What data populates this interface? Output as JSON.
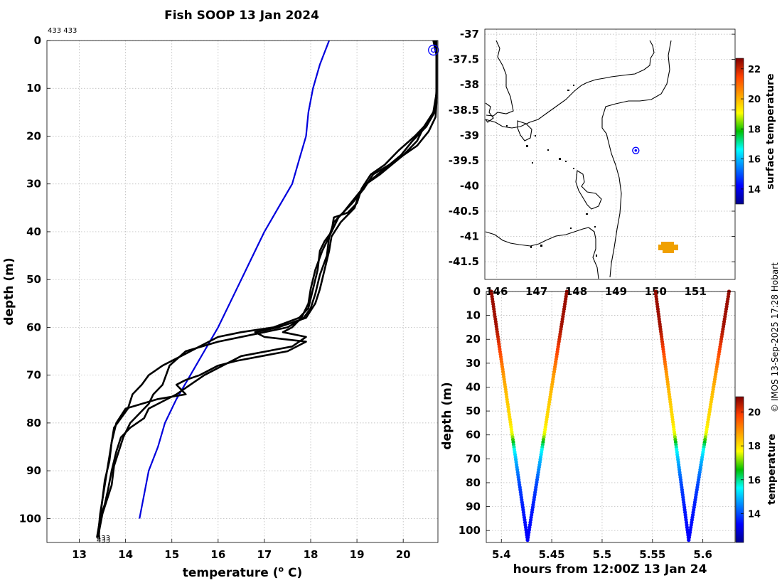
{
  "figure": {
    "credit": "© IMOS 13-Sep-2025 17:28 Hobart"
  },
  "chart_data": [
    {
      "type": "line",
      "title": "Fish SOOP 13 Jan 2024",
      "xlabel": "temperature (",
      "xlabel_sup": "o",
      "xlabel_end": " C)",
      "ylabel": "depth (m)",
      "xlim": [
        12.3,
        20.75
      ],
      "ylim": [
        105,
        0
      ],
      "xticks": [
        13,
        14,
        15,
        16,
        17,
        18,
        19,
        20
      ],
      "yticks": [
        0,
        10,
        20,
        30,
        40,
        50,
        60,
        70,
        80,
        90,
        100
      ],
      "top_annotation": "433 433",
      "bottom_annotation_1": "433",
      "bottom_annotation_2": "433",
      "marker": {
        "x": 20.7,
        "y": 2
      },
      "series": [
        {
          "name": "climatology",
          "color": "#0000dd",
          "points": [
            [
              18.4,
              0
            ],
            [
              18.2,
              5
            ],
            [
              18.05,
              10
            ],
            [
              17.95,
              15
            ],
            [
              17.9,
              20
            ],
            [
              17.75,
              25
            ],
            [
              17.6,
              30
            ],
            [
              17.3,
              35
            ],
            [
              17.0,
              40
            ],
            [
              16.75,
              45
            ],
            [
              16.5,
              50
            ],
            [
              16.25,
              55
            ],
            [
              16.0,
              60
            ],
            [
              15.7,
              65
            ],
            [
              15.4,
              70
            ],
            [
              15.1,
              75
            ],
            [
              14.85,
              80
            ],
            [
              14.7,
              85
            ],
            [
              14.5,
              90
            ],
            [
              14.4,
              95
            ],
            [
              14.3,
              100
            ]
          ]
        },
        {
          "name": "profile-1",
          "color": "#000000",
          "points": [
            [
              20.65,
              0
            ],
            [
              20.72,
              3
            ],
            [
              20.72,
              10
            ],
            [
              20.7,
              14
            ],
            [
              20.55,
              17
            ],
            [
              20.25,
              20
            ],
            [
              19.9,
              23
            ],
            [
              19.6,
              26
            ],
            [
              19.3,
              28
            ],
            [
              19.1,
              31
            ],
            [
              19.0,
              34
            ],
            [
              18.8,
              36
            ],
            [
              18.5,
              37
            ],
            [
              18.45,
              40
            ],
            [
              18.3,
              42
            ],
            [
              18.2,
              44
            ],
            [
              18.15,
              48
            ],
            [
              18.05,
              52
            ],
            [
              17.95,
              56
            ],
            [
              17.75,
              58
            ],
            [
              17.2,
              60
            ],
            [
              16.5,
              61
            ],
            [
              16.0,
              62
            ],
            [
              15.6,
              64
            ],
            [
              15.2,
              66
            ],
            [
              14.8,
              68
            ],
            [
              14.5,
              70
            ],
            [
              14.35,
              72
            ],
            [
              14.15,
              74
            ],
            [
              14.05,
              77
            ],
            [
              13.9,
              79
            ],
            [
              13.75,
              81
            ],
            [
              13.7,
              84
            ],
            [
              13.65,
              87
            ],
            [
              13.6,
              90
            ],
            [
              13.55,
              93
            ],
            [
              13.5,
              96
            ],
            [
              13.45,
              99
            ],
            [
              13.4,
              104
            ]
          ]
        },
        {
          "name": "profile-2",
          "color": "#000000",
          "points": [
            [
              20.7,
              0
            ],
            [
              20.72,
              3
            ],
            [
              20.72,
              12
            ],
            [
              20.68,
              15
            ],
            [
              20.5,
              18
            ],
            [
              20.2,
              21
            ],
            [
              19.95,
              24
            ],
            [
              19.7,
              26
            ],
            [
              19.45,
              28
            ],
            [
              19.2,
              30
            ],
            [
              18.95,
              33
            ],
            [
              18.7,
              36
            ],
            [
              18.5,
              38
            ],
            [
              18.4,
              41
            ],
            [
              18.35,
              45
            ],
            [
              18.2,
              49
            ],
            [
              18.1,
              53
            ],
            [
              18.0,
              56
            ],
            [
              17.85,
              58
            ],
            [
              17.5,
              60
            ],
            [
              17.0,
              61
            ],
            [
              16.0,
              63
            ],
            [
              15.3,
              65
            ],
            [
              14.95,
              68
            ],
            [
              14.8,
              72
            ],
            [
              14.6,
              74
            ],
            [
              14.5,
              76
            ],
            [
              14.3,
              78
            ],
            [
              14.1,
              80
            ],
            [
              13.95,
              83
            ],
            [
              13.85,
              86
            ],
            [
              13.75,
              89
            ],
            [
              13.7,
              93
            ],
            [
              13.6,
              96
            ],
            [
              13.5,
              99
            ],
            [
              13.4,
              104
            ]
          ]
        },
        {
          "name": "profile-3",
          "color": "#000000",
          "points": [
            [
              20.68,
              0
            ],
            [
              20.72,
              3
            ],
            [
              20.72,
              11
            ],
            [
              20.65,
              15
            ],
            [
              20.45,
              18
            ],
            [
              20.3,
              21
            ],
            [
              20.0,
              24
            ],
            [
              19.7,
              26
            ],
            [
              19.35,
              28
            ],
            [
              19.15,
              31
            ],
            [
              18.9,
              34
            ],
            [
              18.6,
              37
            ],
            [
              18.45,
              40
            ],
            [
              18.25,
              44
            ],
            [
              18.1,
              48
            ],
            [
              18.0,
              52
            ],
            [
              17.95,
              55
            ],
            [
              17.8,
              58
            ],
            [
              17.6,
              60
            ],
            [
              17.4,
              61
            ],
            [
              17.9,
              62
            ],
            [
              17.6,
              64
            ],
            [
              16.5,
              66
            ],
            [
              16.1,
              68
            ],
            [
              15.7,
              70
            ],
            [
              15.4,
              72
            ],
            [
              15.1,
              74
            ],
            [
              14.7,
              76
            ],
            [
              14.5,
              77
            ],
            [
              14.4,
              79
            ],
            [
              14.1,
              81
            ],
            [
              13.9,
              83
            ],
            [
              13.8,
              86
            ],
            [
              13.7,
              90
            ],
            [
              13.62,
              94
            ],
            [
              13.55,
              97
            ],
            [
              13.45,
              100
            ],
            [
              13.38,
              104
            ]
          ]
        },
        {
          "name": "profile-4",
          "color": "#000000",
          "points": [
            [
              20.72,
              0
            ],
            [
              20.72,
              3
            ],
            [
              20.72,
              13
            ],
            [
              20.7,
              16
            ],
            [
              20.55,
              19
            ],
            [
              20.3,
              22
            ],
            [
              20.0,
              24
            ],
            [
              19.75,
              26
            ],
            [
              19.5,
              28
            ],
            [
              19.2,
              30
            ],
            [
              19.05,
              32
            ],
            [
              18.95,
              35
            ],
            [
              18.65,
              38
            ],
            [
              18.45,
              41
            ],
            [
              18.4,
              44
            ],
            [
              18.3,
              48
            ],
            [
              18.2,
              52
            ],
            [
              18.1,
              55
            ],
            [
              17.9,
              58
            ],
            [
              17.3,
              60
            ],
            [
              16.8,
              61
            ],
            [
              17.0,
              62
            ],
            [
              17.9,
              63
            ],
            [
              17.5,
              65
            ],
            [
              16.4,
              67
            ],
            [
              16.0,
              68
            ],
            [
              15.6,
              70
            ],
            [
              15.3,
              71
            ],
            [
              15.1,
              72
            ],
            [
              15.3,
              74
            ],
            [
              14.7,
              75
            ],
            [
              14.35,
              76
            ],
            [
              14.0,
              77
            ],
            [
              13.8,
              80
            ],
            [
              13.7,
              84
            ],
            [
              13.65,
              88
            ],
            [
              13.55,
              92
            ],
            [
              13.5,
              96
            ],
            [
              13.45,
              100
            ],
            [
              13.42,
              104
            ]
          ]
        }
      ]
    },
    {
      "type": "map",
      "yticks": [
        "-37",
        "-37.5",
        "-38",
        "-38.5",
        "-39",
        "-39.5",
        "-40",
        "-40.5",
        "-41",
        "-41.5"
      ],
      "xticks": [
        "146",
        "147",
        "148",
        "149",
        "150",
        "151"
      ],
      "xlim": [
        145.7,
        152
      ],
      "ylim": [
        -41.85,
        -36.9
      ],
      "track_marker": {
        "lon": 149.5,
        "lat": -39.3
      },
      "colorbar": {
        "label": "surface temperature",
        "ticks": [
          "14",
          "16",
          "18",
          "20",
          "22"
        ],
        "range": [
          13,
          22.7
        ]
      }
    },
    {
      "type": "scatter",
      "xlabel": "hours from 12:00Z 13 Jan 24",
      "ylabel": "depth (m)",
      "xlim": [
        5.385,
        5.632
      ],
      "ylim": [
        105,
        0
      ],
      "xticks": [
        "5.4",
        "5.45",
        "5.5",
        "5.55",
        "5.6"
      ],
      "yticks": [
        "0",
        "10",
        "20",
        "30",
        "40",
        "50",
        "60",
        "70",
        "80",
        "90",
        "100"
      ],
      "colorbar": {
        "label": "temperature",
        "ticks": [
          "14",
          "16",
          "18",
          "20"
        ],
        "range": [
          12.3,
          20.9
        ]
      },
      "casts": [
        {
          "x_top": 5.39,
          "x_bottom": 5.426,
          "depth_max": 104,
          "direction": "down"
        },
        {
          "x_top": 5.465,
          "x_bottom": 5.426,
          "depth_max": 104,
          "direction": "up"
        },
        {
          "x_top": 5.553,
          "x_bottom": 5.586,
          "depth_max": 104,
          "direction": "down"
        },
        {
          "x_top": 5.626,
          "x_bottom": 5.586,
          "depth_max": 104,
          "direction": "up"
        }
      ],
      "temperature_profile": [
        [
          0,
          20.7
        ],
        [
          15,
          20.6
        ],
        [
          25,
          19.8
        ],
        [
          35,
          18.8
        ],
        [
          45,
          18.3
        ],
        [
          55,
          18.0
        ],
        [
          60,
          17.5
        ],
        [
          63,
          16.5
        ],
        [
          66,
          15.6
        ],
        [
          70,
          15.0
        ],
        [
          75,
          14.5
        ],
        [
          80,
          14.0
        ],
        [
          90,
          13.6
        ],
        [
          100,
          13.4
        ],
        [
          104,
          13.3
        ]
      ]
    }
  ]
}
